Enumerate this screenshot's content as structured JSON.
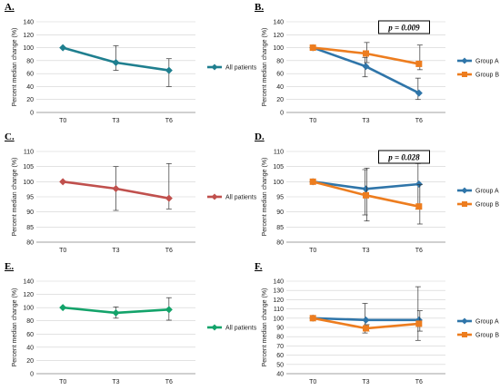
{
  "figure": {
    "ylabel": "Percent median change (%)",
    "colors": {
      "teal": "#1f7f8f",
      "blue": "#2f75a9",
      "orange": "#ed7d1f",
      "red": "#c0504d",
      "green": "#13a36a",
      "grid": "#d0d0d0",
      "err": "#333333"
    }
  },
  "chart_data": [
    {
      "type": "line",
      "panel_label": "A.",
      "categories": [
        "T0",
        "T3",
        "T6"
      ],
      "ylim": [
        0,
        140
      ],
      "yticks": [
        0,
        20,
        40,
        60,
        80,
        100,
        120,
        140
      ],
      "series": [
        {
          "name": "All patients",
          "color": "#1f7f8f",
          "marker": "diamond",
          "values": [
            100,
            77,
            65
          ],
          "err_low": [
            100,
            65,
            40
          ],
          "err_high": [
            100,
            103,
            83
          ]
        }
      ],
      "annotation": ""
    },
    {
      "type": "line",
      "panel_label": "B.",
      "categories": [
        "T0",
        "T3",
        "T6"
      ],
      "ylim": [
        0,
        140
      ],
      "yticks": [
        0,
        20,
        40,
        60,
        80,
        100,
        120,
        140
      ],
      "series": [
        {
          "name": "Group A",
          "color": "#2f75a9",
          "marker": "diamond",
          "values": [
            100,
            71,
            30
          ],
          "err_low": [
            100,
            55,
            20
          ],
          "err_high": [
            100,
            85,
            53
          ]
        },
        {
          "name": "Group B",
          "color": "#ed7d1f",
          "marker": "square",
          "values": [
            100,
            91,
            75
          ],
          "err_low": [
            100,
            77,
            66
          ],
          "err_high": [
            100,
            108,
            104
          ]
        }
      ],
      "annotation": "p = 0.009"
    },
    {
      "type": "line",
      "panel_label": "C.",
      "categories": [
        "T0",
        "T3",
        "T6"
      ],
      "ylim": [
        80,
        110
      ],
      "yticks": [
        80,
        85,
        90,
        95,
        100,
        105,
        110
      ],
      "series": [
        {
          "name": "All patients",
          "color": "#c0504d",
          "marker": "diamond",
          "values": [
            100,
            97.7,
            94.5
          ],
          "err_low": [
            100,
            90.5,
            91
          ],
          "err_high": [
            100,
            105,
            106
          ]
        }
      ],
      "annotation": ""
    },
    {
      "type": "line",
      "panel_label": "D.",
      "categories": [
        "T0",
        "T3",
        "T6"
      ],
      "ylim": [
        80,
        110
      ],
      "yticks": [
        80,
        85,
        90,
        95,
        100,
        105,
        110
      ],
      "series": [
        {
          "name": "Group A",
          "color": "#2f75a9",
          "marker": "diamond",
          "values": [
            100,
            97.6,
            99.2
          ],
          "err_low": [
            100,
            89,
            91
          ],
          "err_high": [
            100,
            104,
            106
          ]
        },
        {
          "name": "Group B",
          "color": "#ed7d1f",
          "marker": "square",
          "values": [
            100,
            95.5,
            91.8
          ],
          "err_low": [
            100,
            87,
            86
          ],
          "err_high": [
            100,
            104.5,
            99
          ]
        }
      ],
      "annotation": "p = 0.028"
    },
    {
      "type": "line",
      "panel_label": "E.",
      "categories": [
        "T0",
        "T3",
        "T6"
      ],
      "ylim": [
        0,
        140
      ],
      "yticks": [
        0,
        20,
        40,
        60,
        80,
        100,
        120,
        140
      ],
      "series": [
        {
          "name": "All patients",
          "color": "#13a36a",
          "marker": "diamond",
          "values": [
            100,
            92,
            97
          ],
          "err_low": [
            100,
            84,
            81
          ],
          "err_high": [
            100,
            101,
            115
          ]
        }
      ],
      "annotation": ""
    },
    {
      "type": "line",
      "panel_label": "F.",
      "categories": [
        "T0",
        "T3",
        "T6"
      ],
      "ylim": [
        40,
        140
      ],
      "yticks": [
        40,
        50,
        60,
        70,
        80,
        90,
        100,
        110,
        120,
        130,
        140
      ],
      "series": [
        {
          "name": "Group A",
          "color": "#2f75a9",
          "marker": "diamond",
          "values": [
            100,
            98,
            98
          ],
          "err_low": [
            100,
            84,
            76
          ],
          "err_high": [
            100,
            116,
            134
          ]
        },
        {
          "name": "Group B",
          "color": "#ed7d1f",
          "marker": "square",
          "values": [
            100,
            89,
            94
          ],
          "err_low": [
            100,
            86,
            86
          ],
          "err_high": [
            100,
            93,
            108
          ]
        }
      ],
      "annotation": ""
    }
  ]
}
